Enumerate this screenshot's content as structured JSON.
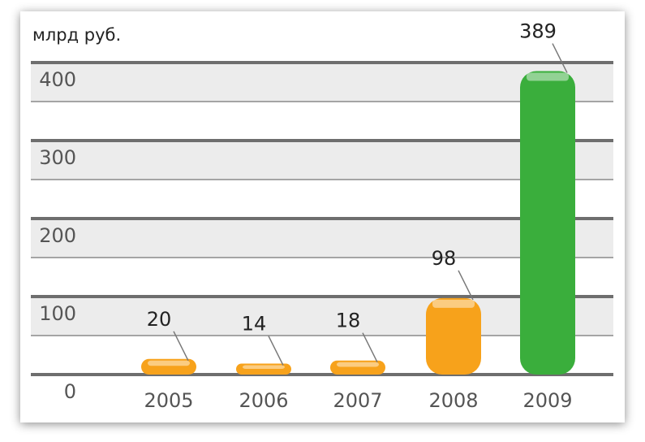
{
  "chart_data": {
    "type": "bar",
    "y_label": "млрд руб.",
    "categories": [
      "2005",
      "2006",
      "2007",
      "2008",
      "2009"
    ],
    "values": [
      20,
      14,
      18,
      98,
      389
    ],
    "colors": [
      "#f7a21b",
      "#f7a21b",
      "#f7a21b",
      "#f7a21b",
      "#3aae3c"
    ],
    "ylim": [
      0,
      400
    ],
    "yticks": [
      0,
      100,
      200,
      300,
      400
    ],
    "grid": true
  }
}
